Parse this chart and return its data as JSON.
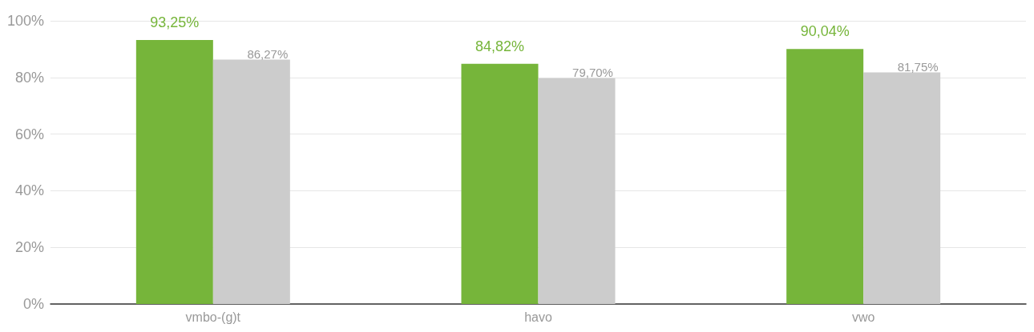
{
  "chart_data": {
    "type": "bar",
    "categories": [
      "vmbo-(g)t",
      "havo",
      "vwo"
    ],
    "series": [
      {
        "color": "#76b53a",
        "values": [
          93.25,
          84.82,
          90.04
        ],
        "value_labels": [
          "93,25%",
          "84,82%",
          "90,04%"
        ]
      },
      {
        "color": "#cccccc",
        "values": [
          86.27,
          79.7,
          81.75
        ],
        "value_labels": [
          "86,27%",
          "79,70%",
          "81,75%"
        ]
      }
    ],
    "ylim": [
      0,
      100
    ],
    "yticks": [
      {
        "value": 0,
        "label": "0%"
      },
      {
        "value": 20,
        "label": "20%"
      },
      {
        "value": 40,
        "label": "40%"
      },
      {
        "value": 60,
        "label": "60%"
      },
      {
        "value": 80,
        "label": "80%"
      },
      {
        "value": 100,
        "label": "100%"
      }
    ],
    "grid": "y"
  }
}
